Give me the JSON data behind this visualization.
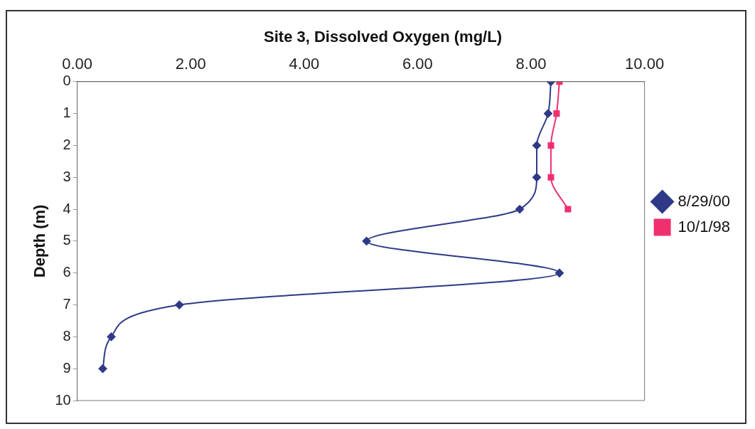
{
  "chart_data": {
    "type": "line",
    "title": "Site 3, Dissolved Oxygen (mg/L)",
    "ylabel": "Depth (m)",
    "series": [
      {
        "name": "8/29/00",
        "color": "#2e3a87",
        "marker": "diamond",
        "x": [
          8.35,
          8.3,
          8.1,
          8.1,
          7.8,
          5.1,
          8.5,
          1.8,
          0.6,
          0.45
        ],
        "values": [
          0,
          1,
          2,
          3,
          4,
          5,
          6,
          7,
          8,
          9
        ]
      },
      {
        "name": "10/1/98",
        "color": "#f0306e",
        "marker": "square",
        "x": [
          8.5,
          8.45,
          8.35,
          8.35,
          8.65
        ],
        "values": [
          0,
          1,
          2,
          3,
          4
        ]
      }
    ],
    "xlim": [
      0,
      10
    ],
    "xticks": [
      {
        "value": 0,
        "label": "0.00"
      },
      {
        "value": 2,
        "label": "2.00"
      },
      {
        "value": 4,
        "label": "4.00"
      },
      {
        "value": 6,
        "label": "6.00"
      },
      {
        "value": 8,
        "label": "8.00"
      },
      {
        "value": 10,
        "label": "10.00"
      }
    ],
    "ylim": [
      10,
      0
    ],
    "yticks": [
      0,
      1,
      2,
      3,
      4,
      5,
      6,
      7,
      8,
      9,
      10
    ],
    "grid": false,
    "legend": "right"
  }
}
